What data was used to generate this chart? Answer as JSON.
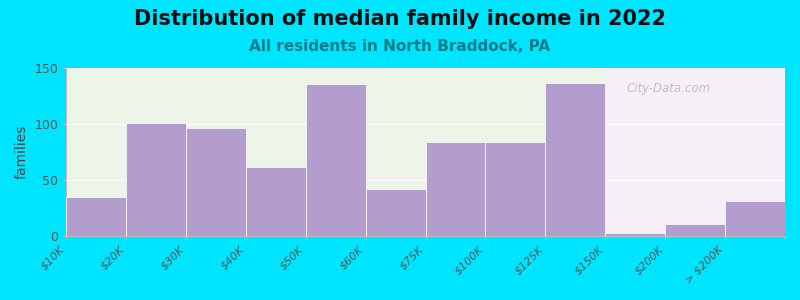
{
  "title": "Distribution of median family income in 2022",
  "subtitle": "All residents in North Braddock, PA",
  "ylabel": "families",
  "categories": [
    "$10K",
    "$20K",
    "$30K",
    "$40K",
    "$50K",
    "$60K",
    "$75K",
    "$100K",
    "$125K",
    "$150K",
    "$200K",
    "> $200K"
  ],
  "values": [
    35,
    101,
    96,
    62,
    136,
    42,
    84,
    84,
    137,
    3,
    11,
    31
  ],
  "bar_color": "#b39dcc",
  "background_outer": "#00e5ff",
  "background_left": "#edf5e8",
  "background_right": "#f5f0f8",
  "ylim": [
    0,
    150
  ],
  "yticks": [
    0,
    50,
    100,
    150
  ],
  "title_fontsize": 15,
  "subtitle_fontsize": 11,
  "ylabel_fontsize": 10,
  "watermark": "City-Data.com",
  "split_index": 9
}
